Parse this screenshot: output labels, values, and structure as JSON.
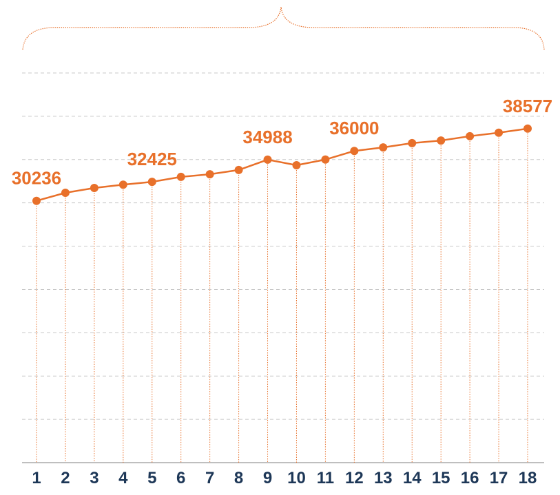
{
  "chart_data": {
    "type": "line",
    "categories": [
      "1",
      "2",
      "3",
      "4",
      "5",
      "6",
      "7",
      "8",
      "9",
      "10",
      "11",
      "12",
      "13",
      "14",
      "15",
      "16",
      "17",
      "18"
    ],
    "series": [
      {
        "color": "#e8702a",
        "values": [
          30236,
          31164,
          31720,
          32100,
          32425,
          33000,
          33300,
          33800,
          34988,
          34350,
          35000,
          36000,
          36400,
          36900,
          37200,
          37700,
          38100,
          38577
        ],
        "value_labels": [
          "30236",
          null,
          null,
          null,
          "32425",
          null,
          null,
          null,
          "34988",
          null,
          null,
          "36000",
          null,
          null,
          null,
          null,
          null,
          "38577"
        ]
      }
    ],
    "ylim": [
      0,
      45000
    ],
    "yticks": [
      0,
      5000,
      10000,
      15000,
      20000,
      25000,
      30000,
      35000,
      40000,
      45000
    ],
    "grid": true
  }
}
